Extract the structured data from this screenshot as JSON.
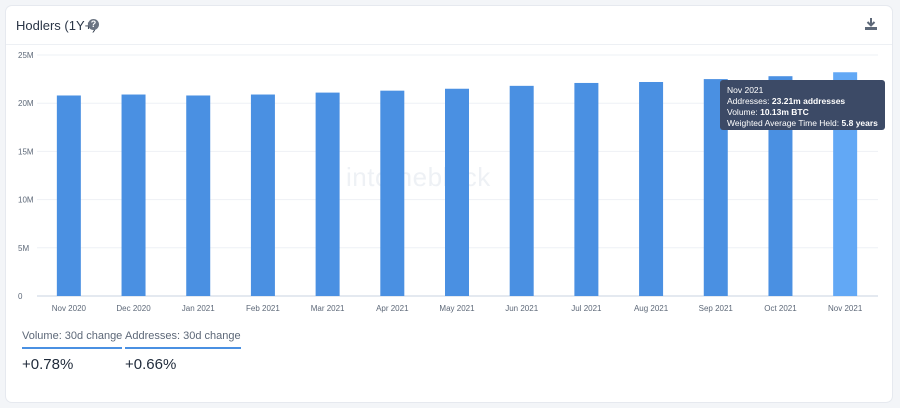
{
  "header": {
    "title": "Hodlers (1Y+)",
    "help_icon": "question-circle-icon",
    "download_icon": "download-icon"
  },
  "watermark": "intotheblock",
  "chart_data": {
    "type": "bar",
    "title": "Hodlers (1Y+)",
    "categories": [
      "Nov 2020",
      "Dec 2020",
      "Jan 2021",
      "Feb 2021",
      "Mar 2021",
      "Apr 2021",
      "May 2021",
      "Jun 2021",
      "Jul 2021",
      "Aug 2021",
      "Sep 2021",
      "Oct 2021",
      "Nov 2021"
    ],
    "values": [
      20.8,
      20.9,
      20.8,
      20.9,
      21.1,
      21.3,
      21.5,
      21.8,
      22.1,
      22.2,
      22.5,
      22.8,
      23.21
    ],
    "y_ticks": [
      "0",
      "5M",
      "10M",
      "15M",
      "20M",
      "25M"
    ],
    "ylim": [
      0,
      25
    ],
    "grid": true,
    "bar_color": "#4a90e2",
    "highlight_color": "#62a8f5",
    "highlight_index": 12
  },
  "tooltip": {
    "date": "Nov 2021",
    "addresses_label": "Addresses:",
    "addresses_value": "23.21m addresses",
    "volume_label": "Volume:",
    "volume_value": "10.13m BTC",
    "time_label": "Weighted Average Time Held:",
    "time_value": "5.8 years"
  },
  "stats": [
    {
      "label": "Volume: 30d change",
      "value": "+0.78%"
    },
    {
      "label": "Addresses: 30d change",
      "value": "+0.66%"
    }
  ]
}
